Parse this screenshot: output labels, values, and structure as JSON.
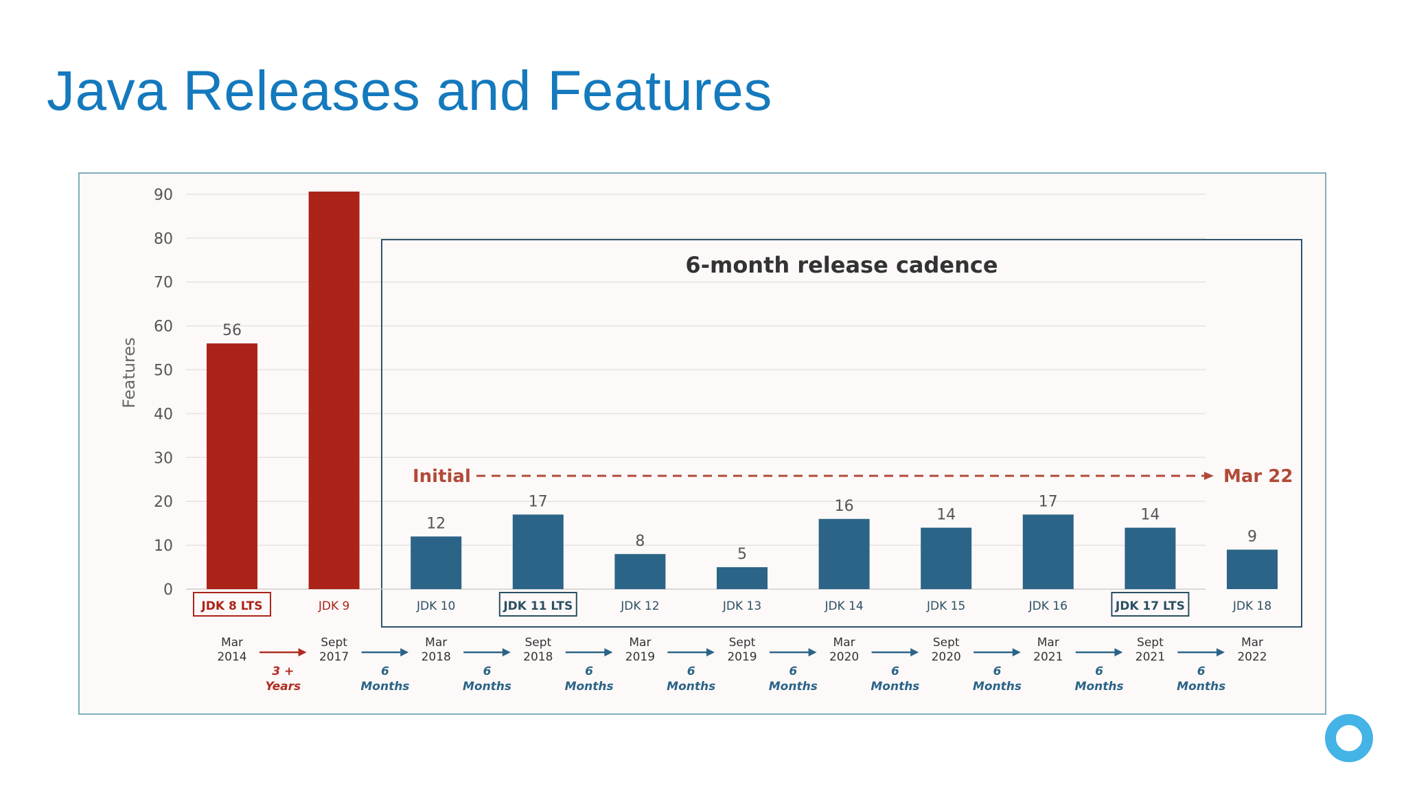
{
  "slide": {
    "title": "Java Releases and Features"
  },
  "chart_data": {
    "type": "bar",
    "ylabel": "Features",
    "ylim": [
      0,
      90
    ],
    "yticks": [
      0,
      10,
      20,
      30,
      40,
      50,
      60,
      70,
      80,
      90
    ],
    "grid": true,
    "categories": [
      "JDK 8 LTS",
      "JDK 9",
      "JDK 10",
      "JDK 11 LTS",
      "JDK 12",
      "JDK 13",
      "JDK 14",
      "JDK 15",
      "JDK 16",
      "JDK 17 LTS",
      "JDK 18"
    ],
    "values": [
      56,
      91,
      12,
      17,
      8,
      5,
      16,
      14,
      17,
      14,
      9
    ],
    "data_labels": [
      "56",
      "",
      "12",
      "17",
      "8",
      "5",
      "16",
      "14",
      "17",
      "14",
      "9"
    ],
    "lts": [
      true,
      false,
      false,
      true,
      false,
      false,
      false,
      false,
      false,
      true,
      false
    ],
    "dates": [
      [
        "Mar",
        "2014"
      ],
      [
        "Sept",
        "2017"
      ],
      [
        "Mar",
        "2018"
      ],
      [
        "Sept",
        "2018"
      ],
      [
        "Mar",
        "2019"
      ],
      [
        "Sept",
        "2019"
      ],
      [
        "Mar",
        "2020"
      ],
      [
        "Sept",
        "2020"
      ],
      [
        "Mar",
        "2021"
      ],
      [
        "Sept",
        "2021"
      ],
      [
        "Mar",
        "2022"
      ]
    ],
    "intervals": [
      [
        "3 +",
        "Years"
      ],
      [
        "6",
        "Months"
      ],
      [
        "6",
        "Months"
      ],
      [
        "6",
        "Months"
      ],
      [
        "6",
        "Months"
      ],
      [
        "6",
        "Months"
      ],
      [
        "6",
        "Months"
      ],
      [
        "6",
        "Months"
      ],
      [
        "6",
        "Months"
      ],
      [
        "6",
        "Months"
      ]
    ],
    "cadence_box_label": "6-month release cadence",
    "initial_label": "Initial",
    "end_label": "Mar 22",
    "colors": {
      "pre_cadence": "#ab2318",
      "cadence": "#2b6487",
      "title": "#1479bd",
      "box": "#2b5468"
    }
  }
}
